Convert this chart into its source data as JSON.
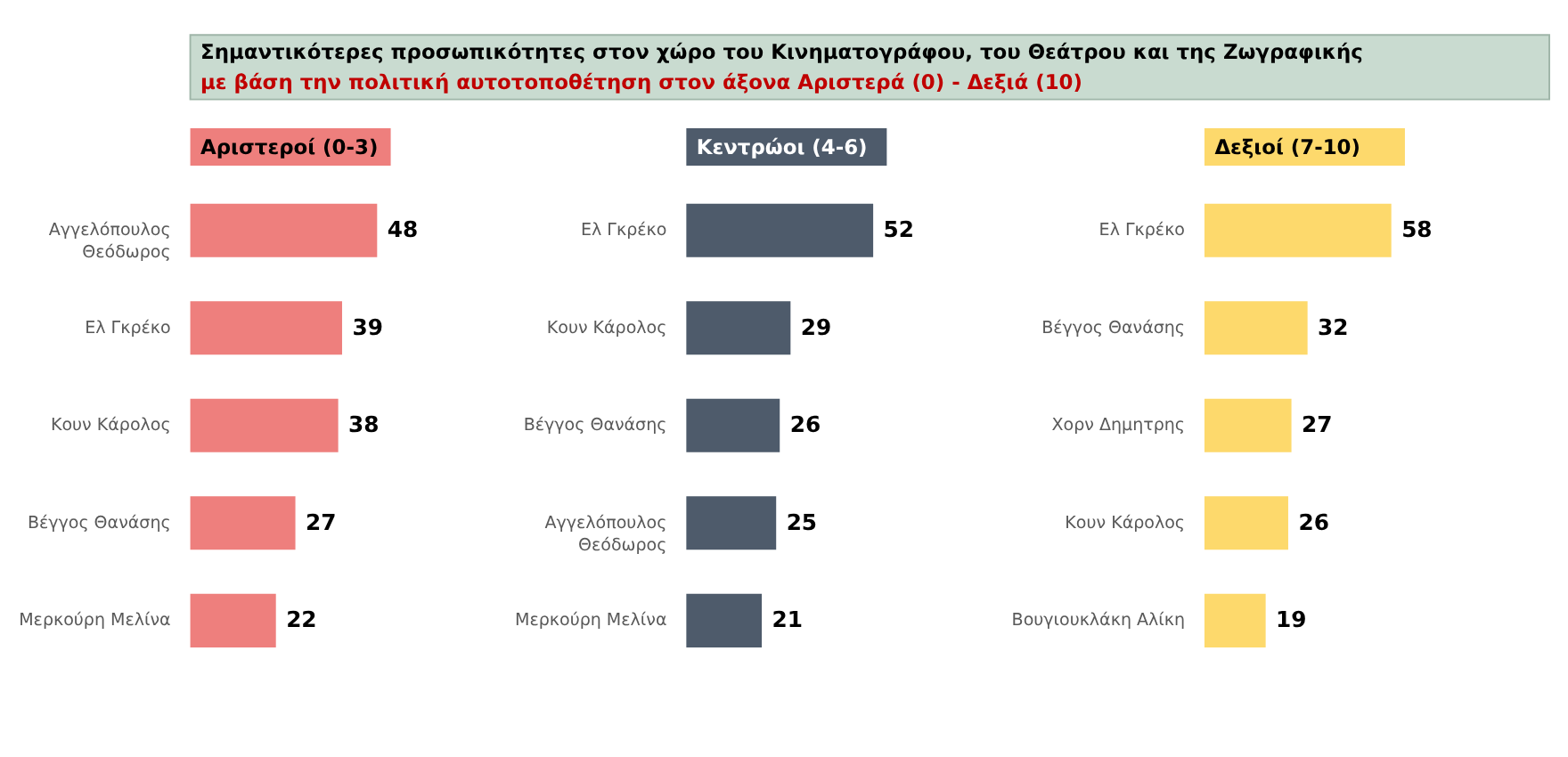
{
  "chart_data": [
    {
      "type": "other",
      "title": "Σημαντικότερες προσωπικότητες  στον χώρο του Κινηματογράφου, του Θεάτρου και της Ζωγραφικής",
      "subtitle": "με βάση την πολιτική αυτοτοποθέτηση στον άξονα Αριστερά (0) - Δεξιά (10)"
    },
    {
      "type": "bar",
      "orientation": "horizontal",
      "title": "Αριστεροί (0-3)",
      "color": "#ee7f7d",
      "data_labels": true,
      "categories": [
        "Αγγελόπουλος Θεόδωρος",
        "Ελ Γκρέκο",
        "Κουν Κάρολος",
        "Βέγγος Θανάσης",
        "Μερκούρη Μελίνα"
      ],
      "values": [
        48,
        39,
        38,
        27,
        22
      ]
    },
    {
      "type": "bar",
      "orientation": "horizontal",
      "title": "Κεντρώοι (4-6)",
      "color": "#4e5b6b",
      "data_labels": true,
      "categories": [
        "Ελ Γκρέκο",
        "Κουν Κάρολος",
        "Βέγγος Θανάσης",
        "Αγγελόπουλος Θεόδωρος",
        "Μερκούρη Μελίνα"
      ],
      "values": [
        52,
        29,
        26,
        25,
        21
      ]
    },
    {
      "type": "bar",
      "orientation": "horizontal",
      "title": "Δεξιοί (7-10)",
      "color": "#fdd96c",
      "data_labels": true,
      "categories": [
        "Ελ Γκρέκο",
        "Βέγγος Θανάσης",
        "Χορν Δημητρης",
        "Κουν Κάρολος",
        "Βουγιουκλάκη Αλίκη"
      ],
      "values": [
        58,
        32,
        27,
        26,
        19
      ]
    }
  ]
}
